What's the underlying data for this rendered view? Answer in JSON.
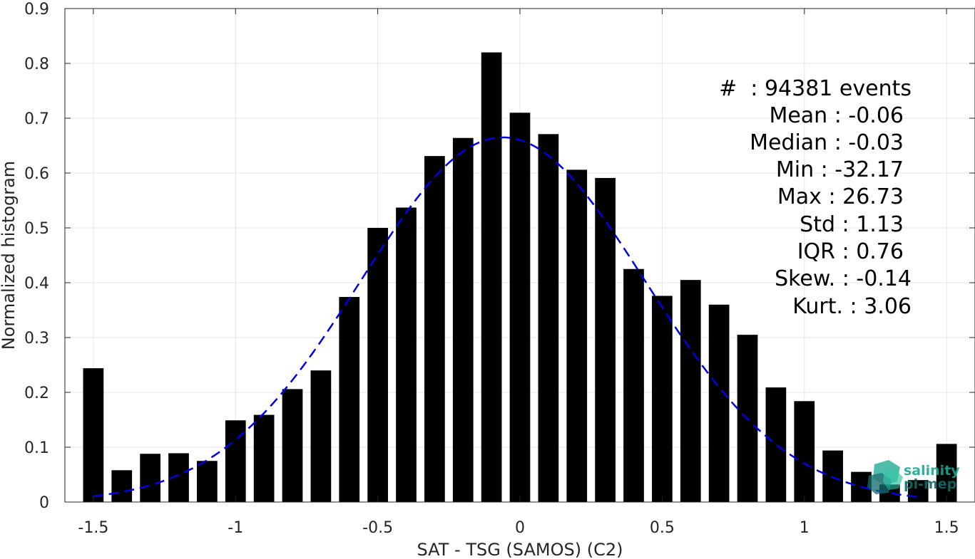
{
  "chart_data": {
    "type": "bar",
    "xlabel": "SAT - TSG (SAMOS) (C2)",
    "ylabel": "Normalized histogram",
    "xlim": [
      -1.6,
      1.6
    ],
    "ylim": [
      0,
      0.9
    ],
    "grid": true,
    "x_ticks": [
      "-1.5",
      "-1",
      "-0.5",
      "0",
      "0.5",
      "1",
      "1.5"
    ],
    "x_tick_values": [
      -1.5,
      -1,
      -0.5,
      0,
      0.5,
      1,
      1.5
    ],
    "y_ticks": [
      "0",
      "0.1",
      "0.2",
      "0.3",
      "0.4",
      "0.5",
      "0.6",
      "0.7",
      "0.8",
      "0.9"
    ],
    "y_tick_values": [
      0,
      0.1,
      0.2,
      0.3,
      0.4,
      0.5,
      0.6,
      0.7,
      0.8,
      0.9
    ],
    "bin_width": 0.1,
    "bars": {
      "x": [
        -1.5,
        -1.4,
        -1.3,
        -1.2,
        -1.1,
        -1.0,
        -0.9,
        -0.8,
        -0.7,
        -0.6,
        -0.5,
        -0.4,
        -0.3,
        -0.2,
        -0.1,
        0.0,
        0.1,
        0.2,
        0.3,
        0.4,
        0.5,
        0.6,
        0.7,
        0.8,
        0.9,
        1.0,
        1.1,
        1.2,
        1.3,
        1.4,
        1.5
      ],
      "values": [
        0.244,
        0.058,
        0.088,
        0.089,
        0.075,
        0.149,
        0.159,
        0.206,
        0.24,
        0.374,
        0.5,
        0.537,
        0.631,
        0.664,
        0.82,
        0.71,
        0.671,
        0.606,
        0.591,
        0.425,
        0.376,
        0.405,
        0.36,
        0.305,
        0.209,
        0.184,
        0.094,
        0.055,
        0.032,
        0.04,
        0.106
      ],
      "color": "#000000"
    },
    "fit_curve": {
      "style": "dashed",
      "color": "#0000e6",
      "mean": -0.06,
      "std": 0.5,
      "peak": 0.665,
      "x_range": [
        -1.5,
        1.4
      ]
    },
    "stats_lines": [
      "#  : 94381 events",
      "Mean : -0.06",
      "Median : -0.03",
      "Min : -32.17",
      "Max : 26.73",
      "Std : 1.13",
      "IQR : 0.76",
      "Skew. : -0.14",
      "Kurt. : 3.06"
    ],
    "logo": {
      "line1": "salinity",
      "line2": "pi-mep",
      "color1": "#1aa98f",
      "color2": "#136b6b"
    }
  }
}
